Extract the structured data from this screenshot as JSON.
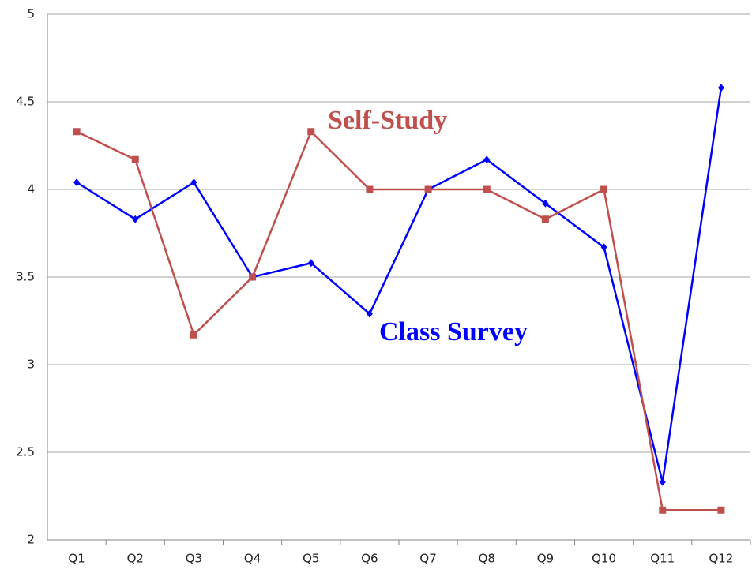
{
  "chart_data": {
    "type": "line",
    "categories": [
      "Q1",
      "Q2",
      "Q3",
      "Q4",
      "Q5",
      "Q6",
      "Q7",
      "Q8",
      "Q9",
      "Q10",
      "Q11",
      "Q12"
    ],
    "series": [
      {
        "name": "Class Survey",
        "color": "#0000ff",
        "marker": "diamond",
        "values": [
          4.04,
          3.83,
          4.04,
          3.5,
          3.58,
          3.29,
          4.0,
          4.17,
          3.92,
          3.67,
          2.33,
          4.58
        ]
      },
      {
        "name": "Self-Study",
        "color": "#c0504d",
        "marker": "square",
        "values": [
          4.33,
          4.17,
          3.17,
          3.5,
          4.33,
          4.0,
          4.0,
          4.0,
          3.83,
          4.0,
          2.17,
          2.17
        ]
      }
    ],
    "ylim": [
      2,
      5
    ],
    "yticks": [
      2,
      2.5,
      3,
      3.5,
      4,
      4.5,
      5
    ],
    "grid": true
  }
}
